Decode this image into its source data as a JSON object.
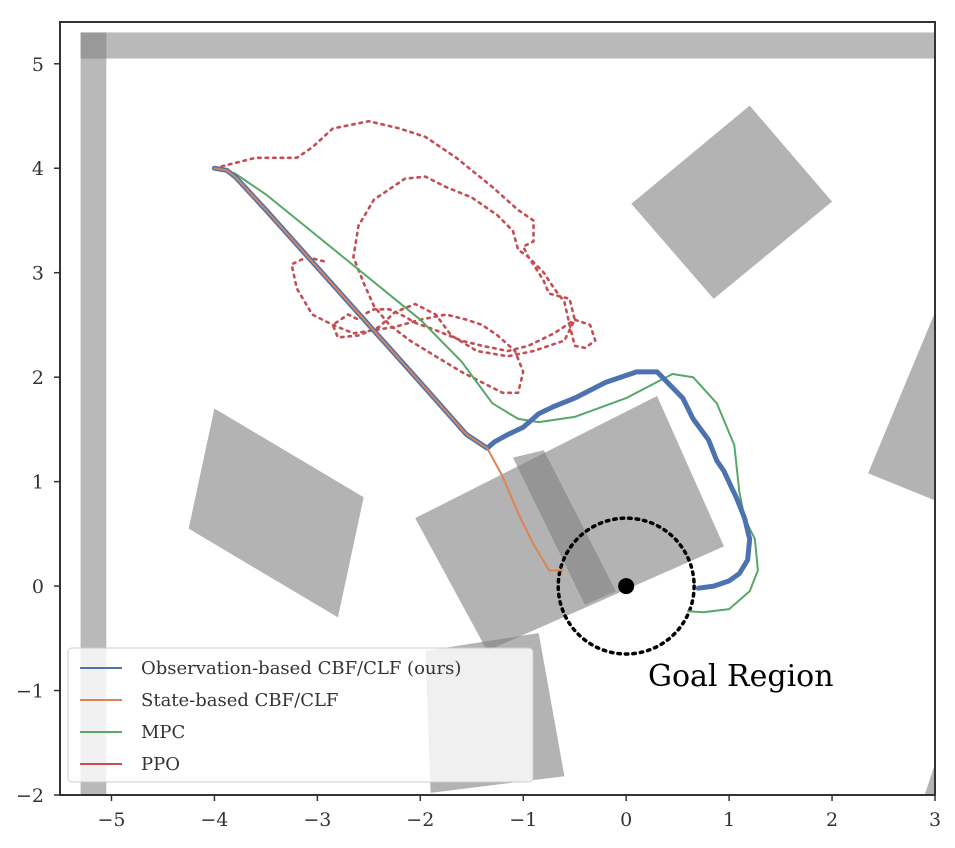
{
  "chart_data": {
    "type": "line",
    "title": "",
    "xlabel": "",
    "ylabel": "",
    "xlim": [
      -5.5,
      3.0
    ],
    "ylim": [
      -2.0,
      5.4
    ],
    "grid": false,
    "x_ticks": [
      -5,
      -4,
      -3,
      -2,
      -1,
      0,
      1,
      2,
      3
    ],
    "y_ticks": [
      -2,
      -1,
      0,
      1,
      2,
      3,
      4,
      5
    ],
    "x_tick_labels": [
      "−5",
      "−4",
      "−3",
      "−2",
      "−1",
      "0",
      "1",
      "2",
      "3"
    ],
    "y_tick_labels": [
      "−2",
      "−1",
      "0",
      "1",
      "2",
      "3",
      "4",
      "5"
    ],
    "legend_position": "lower-left",
    "walls": [
      {
        "x0": -5.3,
        "x1": 3.0,
        "y0": 5.05,
        "y1": 5.3
      },
      {
        "x0": -5.3,
        "x1": -5.05,
        "y0": -2.0,
        "y1": 5.3
      }
    ],
    "obstacles": [
      {
        "corners": [
          [
            -4.0,
            1.7
          ],
          [
            -2.55,
            0.85
          ],
          [
            -2.8,
            -0.3
          ],
          [
            -4.25,
            0.55
          ]
        ]
      },
      {
        "corners": [
          [
            -2.05,
            0.65
          ],
          [
            0.3,
            1.82
          ],
          [
            0.95,
            0.38
          ],
          [
            -1.35,
            -0.62
          ]
        ]
      },
      {
        "corners": [
          [
            -1.1,
            1.23
          ],
          [
            -0.8,
            1.3
          ],
          [
            -0.1,
            -0.05
          ],
          [
            -0.4,
            -0.18
          ]
        ]
      },
      {
        "corners": [
          [
            1.2,
            4.6
          ],
          [
            2.0,
            3.68
          ],
          [
            0.85,
            2.75
          ],
          [
            0.05,
            3.66
          ]
        ]
      },
      {
        "corners": [
          [
            3.0,
            2.62
          ],
          [
            3.05,
            0.8
          ],
          [
            2.35,
            1.08
          ]
        ]
      },
      {
        "corners": [
          [
            -1.9,
            -1.98
          ],
          [
            -0.6,
            -1.82
          ],
          [
            -0.85,
            -0.45
          ],
          [
            -1.95,
            -0.62
          ]
        ]
      },
      {
        "corners": [
          [
            2.9,
            -2.0
          ],
          [
            3.0,
            -1.7
          ],
          [
            3.0,
            -2.0
          ]
        ]
      }
    ],
    "goal": {
      "label": "Goal Region",
      "center": [
        0.0,
        0.0
      ],
      "radius": 0.66
    },
    "series": [
      {
        "name": "Observation-based CBF/CLF (ours)",
        "color": "#4c72b0",
        "style": "solid-thick",
        "x": [
          -4.0,
          -3.88,
          -3.8,
          -3.5,
          -3.0,
          -2.5,
          -2.0,
          -1.55,
          -1.35,
          -1.28,
          -1.15,
          -1.0,
          -0.85,
          -0.7,
          -0.5,
          -0.2,
          0.1,
          0.3,
          0.4,
          0.55,
          0.65,
          0.8,
          0.88,
          0.95,
          1.02,
          1.07,
          1.15,
          1.2,
          1.18,
          1.1,
          1.0,
          0.85,
          0.7
        ],
        "y": [
          4.0,
          3.98,
          3.92,
          3.6,
          3.05,
          2.5,
          1.95,
          1.45,
          1.32,
          1.38,
          1.45,
          1.52,
          1.65,
          1.72,
          1.8,
          1.95,
          2.05,
          2.05,
          1.95,
          1.8,
          1.6,
          1.4,
          1.2,
          1.1,
          0.95,
          0.85,
          0.65,
          0.45,
          0.25,
          0.12,
          0.05,
          0.0,
          -0.02
        ]
      },
      {
        "name": "State-based CBF/CLF",
        "color": "#dd8452",
        "style": "solid",
        "x": [
          -4.0,
          -3.88,
          -3.8,
          -3.5,
          -3.0,
          -2.5,
          -2.0,
          -1.55,
          -1.35,
          -1.2,
          -1.05,
          -0.9,
          -0.75,
          -0.62
        ],
        "y": [
          4.0,
          3.98,
          3.92,
          3.6,
          3.05,
          2.5,
          1.95,
          1.45,
          1.32,
          1.05,
          0.7,
          0.4,
          0.15,
          0.15
        ]
      },
      {
        "name": "MPC",
        "color": "#55a868",
        "style": "solid",
        "x": [
          -4.0,
          -3.8,
          -3.5,
          -3.0,
          -2.5,
          -2.0,
          -1.6,
          -1.3,
          -1.05,
          -0.85,
          -0.5,
          0.0,
          0.45,
          0.65,
          0.88,
          1.05,
          1.1,
          1.15,
          1.25,
          1.28,
          1.2,
          1.0,
          0.75,
          0.6
        ],
        "y": [
          4.0,
          3.95,
          3.75,
          3.35,
          2.95,
          2.55,
          2.15,
          1.75,
          1.6,
          1.57,
          1.62,
          1.8,
          2.03,
          2.0,
          1.75,
          1.35,
          0.9,
          0.65,
          0.45,
          0.15,
          -0.05,
          -0.22,
          -0.25,
          -0.24
        ]
      },
      {
        "name": "PPO",
        "color": "#c44e52",
        "style": "dotted",
        "x": [
          -4.0,
          -3.6,
          -3.2,
          -3.05,
          -2.85,
          -2.5,
          -2.2,
          -1.95,
          -1.65,
          -1.3,
          -1.05,
          -0.9,
          -0.9,
          -1.0,
          -0.95,
          -0.85,
          -0.8,
          -0.75,
          -0.55,
          -0.5,
          -0.6,
          -0.9,
          -1.15,
          -1.45,
          -1.7,
          -1.85,
          -2.05,
          -2.25,
          -2.4,
          -2.6,
          -2.8,
          -2.85,
          -2.7,
          -2.6,
          -2.55,
          -2.45,
          -2.3,
          -2.15,
          -2.05,
          -1.85,
          -1.6,
          -1.4,
          -1.15,
          -0.95,
          -0.7,
          -0.5,
          -0.35,
          -0.3,
          -0.4,
          -0.5,
          -0.55,
          -0.6,
          -0.7,
          -0.8,
          -0.95,
          -1.05,
          -1.1,
          -1.25,
          -1.5,
          -1.75,
          -1.95,
          -2.15,
          -2.45,
          -2.6,
          -2.65,
          -2.55,
          -2.45,
          -2.3,
          -2.1,
          -1.85,
          -1.6,
          -1.4,
          -1.2,
          -1.05,
          -1.0,
          -1.08,
          -1.25,
          -1.4,
          -1.55,
          -1.75,
          -2.0,
          -2.25,
          -2.45,
          -2.65,
          -2.85,
          -3.05,
          -3.2,
          -3.25,
          -3.1,
          -2.9
        ],
        "y": [
          4.0,
          4.1,
          4.1,
          4.2,
          4.38,
          4.45,
          4.38,
          4.3,
          4.1,
          3.82,
          3.6,
          3.5,
          3.3,
          3.25,
          3.15,
          3.0,
          2.92,
          2.8,
          2.75,
          2.55,
          2.35,
          2.25,
          2.2,
          2.25,
          2.4,
          2.6,
          2.7,
          2.62,
          2.48,
          2.4,
          2.38,
          2.5,
          2.6,
          2.55,
          2.6,
          2.65,
          2.65,
          2.58,
          2.52,
          2.45,
          2.35,
          2.3,
          2.25,
          2.3,
          2.42,
          2.55,
          2.5,
          2.35,
          2.28,
          2.3,
          2.5,
          2.72,
          2.85,
          3.0,
          3.15,
          3.22,
          3.4,
          3.55,
          3.72,
          3.82,
          3.92,
          3.9,
          3.7,
          3.45,
          3.15,
          2.9,
          2.68,
          2.5,
          2.35,
          2.2,
          2.05,
          1.95,
          1.85,
          1.85,
          2.05,
          2.25,
          2.4,
          2.5,
          2.55,
          2.6,
          2.55,
          2.48,
          2.45,
          2.42,
          2.5,
          2.6,
          2.85,
          3.08,
          3.15,
          3.1
        ]
      }
    ]
  }
}
